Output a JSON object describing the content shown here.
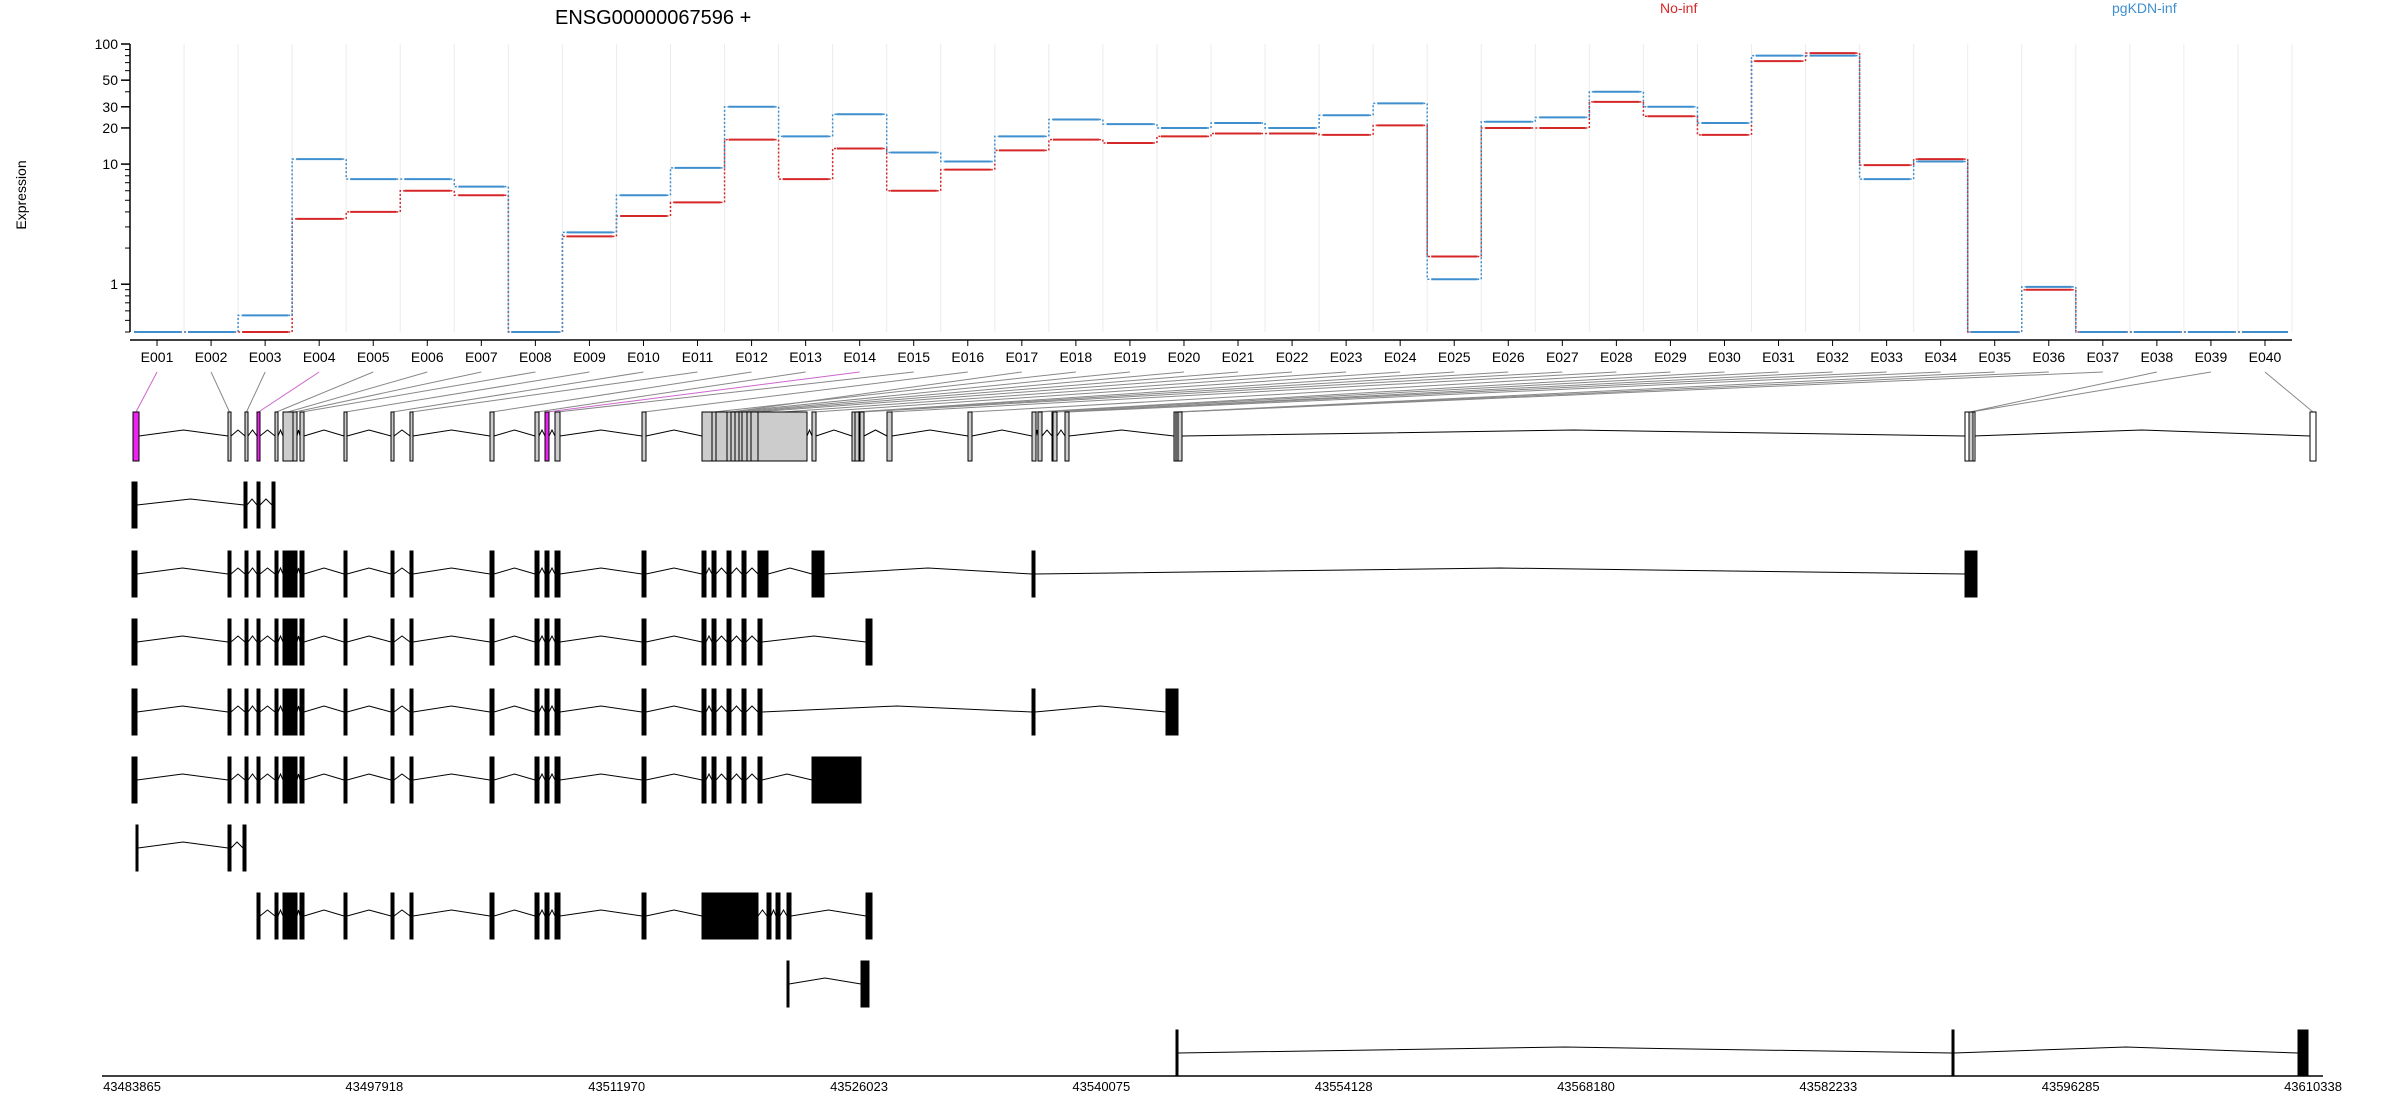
{
  "chart_data": {
    "type": "line",
    "title": "ENSG00000067596 +",
    "ylabel": "Expression",
    "yscale": "log",
    "ylim": [
      0.4,
      100
    ],
    "yticks": [
      1,
      10,
      20,
      30,
      50,
      100
    ],
    "ytick_labels": [
      "1",
      "10",
      "20",
      "30",
      "50",
      "100"
    ],
    "grid": "vertical",
    "legend_placement": "top",
    "categories": [
      "E001",
      "E002",
      "E003",
      "E004",
      "E005",
      "E006",
      "E007",
      "E008",
      "E009",
      "E010",
      "E011",
      "E012",
      "E013",
      "E014",
      "E015",
      "E016",
      "E017",
      "E018",
      "E019",
      "E020",
      "E021",
      "E022",
      "E023",
      "E024",
      "E025",
      "E026",
      "E027",
      "E028",
      "E029",
      "E030",
      "E031",
      "E032",
      "E033",
      "E034",
      "E035",
      "E036",
      "E037",
      "E038",
      "E039",
      "E040"
    ],
    "series": [
      {
        "name": "No-inf",
        "color": "#d62728",
        "values": [
          0.4,
          0.4,
          0.4,
          3.5,
          4.0,
          6.0,
          5.5,
          0.4,
          2.5,
          3.7,
          4.8,
          16,
          7.5,
          13.5,
          6.0,
          9.0,
          13.0,
          16,
          15,
          17,
          18,
          18,
          17.5,
          21,
          1.7,
          20,
          20,
          33,
          25,
          17.5,
          72,
          84,
          9.8,
          11,
          0.4,
          0.9,
          0.4,
          0.4,
          0.4,
          0.4
        ]
      },
      {
        "name": "pgKDN-inf",
        "color": "#3f8fcf",
        "values": [
          0.4,
          0.4,
          0.55,
          11,
          7.5,
          7.5,
          6.5,
          0.4,
          2.7,
          5.5,
          9.3,
          30,
          17,
          26,
          12.5,
          10.5,
          17,
          23.5,
          21.5,
          20,
          22,
          20,
          25.5,
          32,
          1.1,
          22.5,
          24.5,
          40,
          30,
          22,
          80,
          80,
          7.5,
          10.5,
          0.4,
          0.95,
          0.4,
          0.4,
          0.4,
          0.4
        ]
      }
    ],
    "gene_model": {
      "coordinate_ticks": [
        "43483865",
        "43497918",
        "43511970",
        "43526023",
        "43540075",
        "43554128",
        "43568180",
        "43582233",
        "43596285",
        "43610338"
      ],
      "coordinate_range": [
        43483865,
        43610338
      ],
      "highlight_color": "#ee22ee",
      "highlighted_exons": [
        "E001",
        "E004",
        "E014"
      ]
    }
  }
}
